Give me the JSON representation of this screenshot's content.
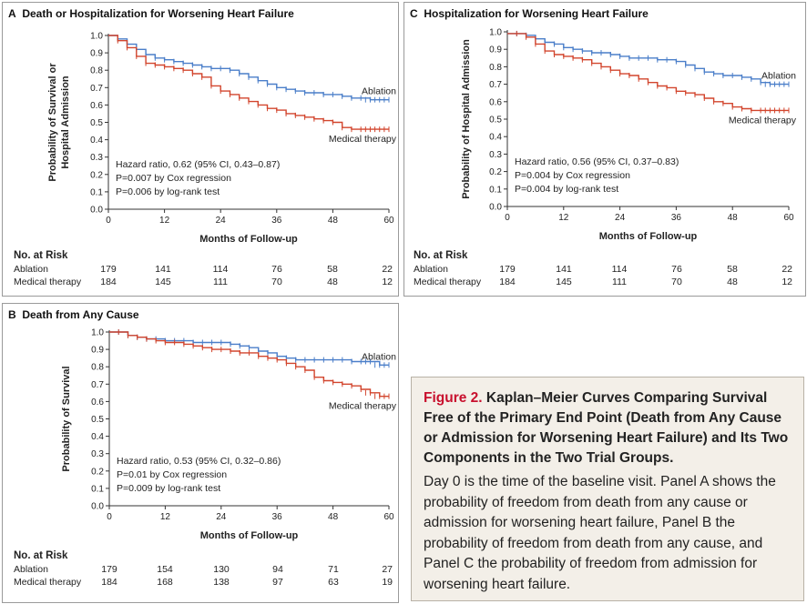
{
  "colors": {
    "ablation": "#4a7ec9",
    "medical": "#d2452d"
  },
  "chart_data": [
    {
      "id": "A",
      "type": "line",
      "panel_label": "A",
      "title": "Death or Hospitalization for Worsening Heart Failure",
      "ylabel_lines": [
        "Probability of Survival or",
        "Hospital Admission"
      ],
      "xlabel": "Months of Follow-up",
      "xlim": [
        0,
        60
      ],
      "ylim": [
        0,
        1
      ],
      "xticks": [
        0,
        12,
        24,
        36,
        48,
        60
      ],
      "yticks": [
        "0.0",
        "0.1",
        "0.2",
        "0.3",
        "0.4",
        "0.5",
        "0.6",
        "0.7",
        "0.8",
        "0.9",
        "1.0"
      ],
      "series": [
        {
          "name": "Ablation",
          "key": "ablation",
          "x": [
            0,
            2,
            4,
            6,
            8,
            10,
            12,
            14,
            16,
            18,
            20,
            22,
            24,
            26,
            28,
            30,
            32,
            34,
            36,
            38,
            40,
            42,
            44,
            46,
            48,
            50,
            52,
            54,
            56,
            58,
            60
          ],
          "y": [
            1.0,
            0.98,
            0.95,
            0.92,
            0.89,
            0.87,
            0.86,
            0.85,
            0.84,
            0.83,
            0.82,
            0.81,
            0.81,
            0.8,
            0.78,
            0.76,
            0.74,
            0.72,
            0.7,
            0.69,
            0.68,
            0.67,
            0.67,
            0.66,
            0.66,
            0.65,
            0.64,
            0.64,
            0.63,
            0.63,
            0.63
          ]
        },
        {
          "name": "Medical therapy",
          "key": "medical",
          "x": [
            0,
            2,
            4,
            6,
            8,
            10,
            12,
            14,
            16,
            18,
            20,
            22,
            24,
            26,
            28,
            30,
            32,
            34,
            36,
            38,
            40,
            42,
            44,
            46,
            48,
            50,
            52,
            54,
            56,
            58,
            60
          ],
          "y": [
            1.0,
            0.97,
            0.93,
            0.88,
            0.84,
            0.83,
            0.82,
            0.81,
            0.8,
            0.78,
            0.76,
            0.71,
            0.68,
            0.66,
            0.64,
            0.62,
            0.6,
            0.58,
            0.57,
            0.55,
            0.54,
            0.53,
            0.52,
            0.51,
            0.5,
            0.47,
            0.46,
            0.46,
            0.46,
            0.46,
            0.46
          ]
        }
      ],
      "end_labels": {
        "ablation": "Ablation",
        "medical": "Medical therapy"
      },
      "stats": [
        "Hazard ratio, 0.62 (95% CI, 0.43–0.87)",
        "P=0.007 by Cox regression",
        "P=0.006 by log-rank test"
      ],
      "risk": {
        "heading": "No. at Risk",
        "rows": [
          {
            "label": "Ablation",
            "values": [
              "179",
              "141",
              "114",
              "76",
              "58",
              "22"
            ]
          },
          {
            "label": "Medical therapy",
            "values": [
              "184",
              "145",
              "111",
              "70",
              "48",
              "12"
            ]
          }
        ]
      }
    },
    {
      "id": "C",
      "type": "line",
      "panel_label": "C",
      "title": "Hospitalization for Worsening Heart Failure",
      "ylabel_lines": [
        "Probability of Hospital Admission"
      ],
      "xlabel": "Months of Follow-up",
      "xlim": [
        0,
        60
      ],
      "ylim": [
        0,
        1
      ],
      "xticks": [
        0,
        12,
        24,
        36,
        48,
        60
      ],
      "yticks": [
        "0.0",
        "0.1",
        "0.2",
        "0.3",
        "0.4",
        "0.5",
        "0.6",
        "0.7",
        "0.8",
        "0.9",
        "1.0"
      ],
      "series": [
        {
          "name": "Ablation",
          "key": "ablation",
          "x": [
            0,
            2,
            4,
            6,
            8,
            10,
            12,
            14,
            16,
            18,
            20,
            22,
            24,
            26,
            28,
            30,
            32,
            34,
            36,
            38,
            40,
            42,
            44,
            46,
            48,
            50,
            52,
            54,
            56,
            58,
            60
          ],
          "y": [
            0.99,
            0.99,
            0.98,
            0.96,
            0.94,
            0.93,
            0.91,
            0.9,
            0.89,
            0.88,
            0.88,
            0.87,
            0.86,
            0.85,
            0.85,
            0.85,
            0.84,
            0.84,
            0.83,
            0.81,
            0.79,
            0.77,
            0.76,
            0.75,
            0.75,
            0.74,
            0.73,
            0.71,
            0.7,
            0.7,
            0.7
          ]
        },
        {
          "name": "Medical therapy",
          "key": "medical",
          "x": [
            0,
            2,
            4,
            6,
            8,
            10,
            12,
            14,
            16,
            18,
            20,
            22,
            24,
            26,
            28,
            30,
            32,
            34,
            36,
            38,
            40,
            42,
            44,
            46,
            48,
            50,
            52,
            54,
            56,
            58,
            60
          ],
          "y": [
            0.99,
            0.99,
            0.97,
            0.93,
            0.89,
            0.87,
            0.86,
            0.85,
            0.84,
            0.82,
            0.8,
            0.78,
            0.76,
            0.75,
            0.73,
            0.71,
            0.69,
            0.68,
            0.66,
            0.65,
            0.64,
            0.62,
            0.6,
            0.59,
            0.57,
            0.56,
            0.55,
            0.55,
            0.55,
            0.55,
            0.55
          ]
        }
      ],
      "end_labels": {
        "ablation": "Ablation",
        "medical": "Medical therapy"
      },
      "stats": [
        "Hazard ratio, 0.56 (95% CI, 0.37–0.83)",
        "P=0.004 by Cox regression",
        "P=0.004 by log-rank test"
      ],
      "risk": {
        "heading": "No. at Risk",
        "rows": [
          {
            "label": "Ablation",
            "values": [
              "179",
              "141",
              "114",
              "76",
              "58",
              "22"
            ]
          },
          {
            "label": "Medical therapy",
            "values": [
              "184",
              "145",
              "111",
              "70",
              "48",
              "12"
            ]
          }
        ]
      }
    },
    {
      "id": "B",
      "type": "line",
      "panel_label": "B",
      "title": "Death from Any Cause",
      "ylabel_lines": [
        "Probability of Survival"
      ],
      "xlabel": "Months of Follow-up",
      "xlim": [
        0,
        60
      ],
      "ylim": [
        0,
        1
      ],
      "xticks": [
        0,
        12,
        24,
        36,
        48,
        60
      ],
      "yticks": [
        "0.0",
        "0.1",
        "0.2",
        "0.3",
        "0.4",
        "0.5",
        "0.6",
        "0.7",
        "0.8",
        "0.9",
        "1.0"
      ],
      "series": [
        {
          "name": "Ablation",
          "key": "ablation",
          "x": [
            0,
            2,
            4,
            6,
            8,
            10,
            12,
            14,
            16,
            18,
            20,
            22,
            24,
            26,
            28,
            30,
            32,
            34,
            36,
            38,
            40,
            42,
            44,
            46,
            48,
            50,
            52,
            54,
            56,
            58,
            60
          ],
          "y": [
            1.0,
            1.0,
            0.98,
            0.97,
            0.96,
            0.96,
            0.95,
            0.95,
            0.95,
            0.94,
            0.94,
            0.94,
            0.94,
            0.93,
            0.92,
            0.91,
            0.89,
            0.88,
            0.86,
            0.85,
            0.84,
            0.84,
            0.84,
            0.84,
            0.84,
            0.84,
            0.83,
            0.83,
            0.83,
            0.81,
            0.81
          ]
        },
        {
          "name": "Medical therapy",
          "key": "medical",
          "x": [
            0,
            2,
            4,
            6,
            8,
            10,
            12,
            14,
            16,
            18,
            20,
            22,
            24,
            26,
            28,
            30,
            32,
            34,
            36,
            38,
            40,
            42,
            44,
            46,
            48,
            50,
            52,
            54,
            56,
            58,
            60
          ],
          "y": [
            1.0,
            1.0,
            0.98,
            0.97,
            0.96,
            0.95,
            0.94,
            0.94,
            0.93,
            0.92,
            0.91,
            0.9,
            0.9,
            0.89,
            0.88,
            0.88,
            0.86,
            0.85,
            0.84,
            0.82,
            0.8,
            0.78,
            0.74,
            0.72,
            0.71,
            0.7,
            0.69,
            0.67,
            0.65,
            0.63,
            0.63
          ]
        }
      ],
      "end_labels": {
        "ablation": "Ablation",
        "medical": "Medical therapy"
      },
      "stats": [
        "Hazard ratio, 0.53 (95% CI, 0.32–0.86)",
        "P=0.01 by Cox regression",
        "P=0.009 by log-rank test"
      ],
      "risk": {
        "heading": "No. at Risk",
        "rows": [
          {
            "label": "Ablation",
            "values": [
              "179",
              "154",
              "130",
              "94",
              "71",
              "27"
            ]
          },
          {
            "label": "Medical therapy",
            "values": [
              "184",
              "168",
              "138",
              "97",
              "63",
              "19"
            ]
          }
        ]
      }
    }
  ],
  "caption": {
    "figure_number": "Figure 2.",
    "title": "Kaplan–Meier Curves Comparing Survival Free of the Primary End Point (Death from Any Cause or Admission for Worsening Heart Failure) and Its Two Components in the Two Trial Groups.",
    "body": "Day 0 is the time of the baseline visit. Panel A shows the probability of freedom from death from any cause or admission for worsening heart failure, Panel B the probability of freedom from death from any cause, and Panel C the probability of freedom from admission for worsening heart failure."
  }
}
